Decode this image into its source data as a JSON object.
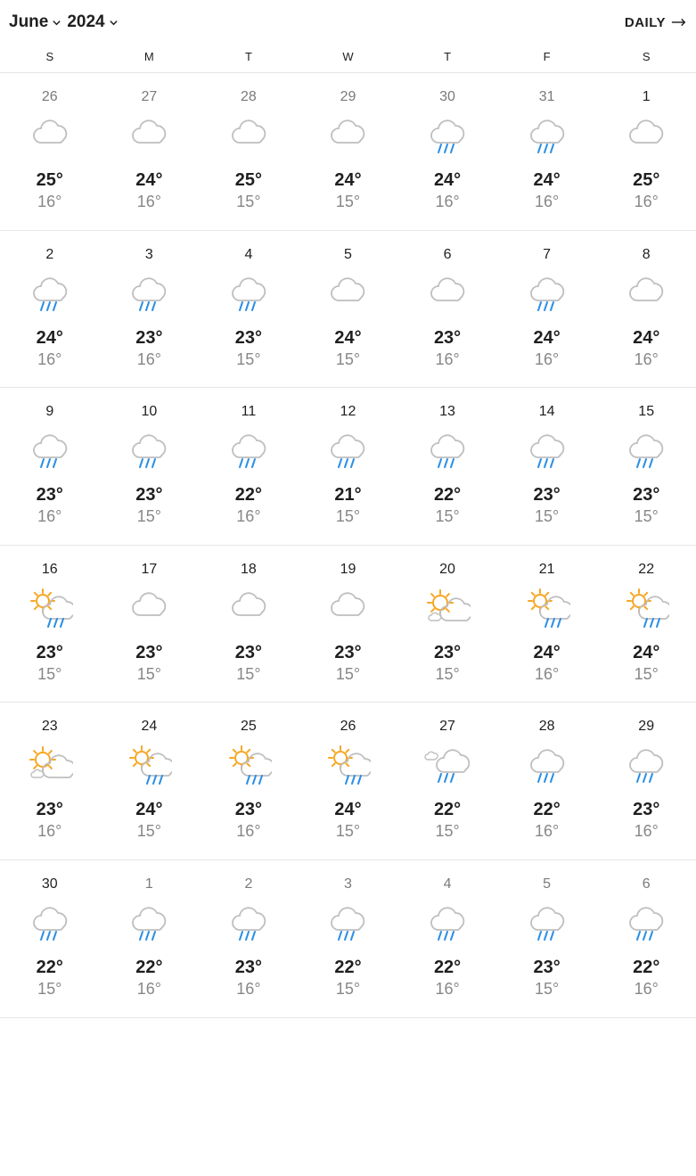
{
  "header": {
    "month": "June",
    "year": "2024",
    "daily_label": "DAILY"
  },
  "colors": {
    "text": "#1f1f1f",
    "muted": "#878787",
    "other_month": "#7a7a7a",
    "divider": "#e6e6e6",
    "cloud_stroke": "#bfbfbf",
    "rain": "#2a8fe6",
    "sun": "#f6a724",
    "background": "#ffffff"
  },
  "dow": [
    "S",
    "M",
    "T",
    "W",
    "T",
    "F",
    "S"
  ],
  "icon_types": [
    "cloudy",
    "rain",
    "partly-cloudy",
    "partly-rain",
    "sun-rain"
  ],
  "weeks": [
    [
      {
        "d": "26",
        "hi": "25°",
        "lo": "16°",
        "icon": "cloudy",
        "other": true
      },
      {
        "d": "27",
        "hi": "24°",
        "lo": "16°",
        "icon": "cloudy",
        "other": true
      },
      {
        "d": "28",
        "hi": "25°",
        "lo": "15°",
        "icon": "cloudy",
        "other": true
      },
      {
        "d": "29",
        "hi": "24°",
        "lo": "15°",
        "icon": "cloudy",
        "other": true
      },
      {
        "d": "30",
        "hi": "24°",
        "lo": "16°",
        "icon": "rain",
        "other": true
      },
      {
        "d": "31",
        "hi": "24°",
        "lo": "16°",
        "icon": "rain",
        "other": true
      },
      {
        "d": "1",
        "hi": "25°",
        "lo": "16°",
        "icon": "cloudy",
        "other": false
      }
    ],
    [
      {
        "d": "2",
        "hi": "24°",
        "lo": "16°",
        "icon": "rain",
        "other": false
      },
      {
        "d": "3",
        "hi": "23°",
        "lo": "16°",
        "icon": "rain",
        "other": false
      },
      {
        "d": "4",
        "hi": "23°",
        "lo": "15°",
        "icon": "rain",
        "other": false
      },
      {
        "d": "5",
        "hi": "24°",
        "lo": "15°",
        "icon": "cloudy",
        "other": false
      },
      {
        "d": "6",
        "hi": "23°",
        "lo": "16°",
        "icon": "cloudy",
        "other": false
      },
      {
        "d": "7",
        "hi": "24°",
        "lo": "16°",
        "icon": "rain",
        "other": false
      },
      {
        "d": "8",
        "hi": "24°",
        "lo": "16°",
        "icon": "cloudy",
        "other": false
      }
    ],
    [
      {
        "d": "9",
        "hi": "23°",
        "lo": "16°",
        "icon": "rain",
        "other": false
      },
      {
        "d": "10",
        "hi": "23°",
        "lo": "15°",
        "icon": "rain",
        "other": false
      },
      {
        "d": "11",
        "hi": "22°",
        "lo": "16°",
        "icon": "rain",
        "other": false
      },
      {
        "d": "12",
        "hi": "21°",
        "lo": "15°",
        "icon": "rain",
        "other": false
      },
      {
        "d": "13",
        "hi": "22°",
        "lo": "15°",
        "icon": "rain",
        "other": false
      },
      {
        "d": "14",
        "hi": "23°",
        "lo": "15°",
        "icon": "rain",
        "other": false
      },
      {
        "d": "15",
        "hi": "23°",
        "lo": "15°",
        "icon": "rain",
        "other": false
      }
    ],
    [
      {
        "d": "16",
        "hi": "23°",
        "lo": "15°",
        "icon": "sun-rain",
        "other": false
      },
      {
        "d": "17",
        "hi": "23°",
        "lo": "15°",
        "icon": "cloudy",
        "other": false
      },
      {
        "d": "18",
        "hi": "23°",
        "lo": "15°",
        "icon": "cloudy",
        "other": false
      },
      {
        "d": "19",
        "hi": "23°",
        "lo": "15°",
        "icon": "cloudy",
        "other": false
      },
      {
        "d": "20",
        "hi": "23°",
        "lo": "15°",
        "icon": "partly-cloudy",
        "other": false
      },
      {
        "d": "21",
        "hi": "24°",
        "lo": "16°",
        "icon": "sun-rain",
        "other": false
      },
      {
        "d": "22",
        "hi": "24°",
        "lo": "15°",
        "icon": "sun-rain",
        "other": false
      }
    ],
    [
      {
        "d": "23",
        "hi": "23°",
        "lo": "16°",
        "icon": "partly-cloudy",
        "other": false
      },
      {
        "d": "24",
        "hi": "24°",
        "lo": "15°",
        "icon": "sun-rain",
        "other": false
      },
      {
        "d": "25",
        "hi": "23°",
        "lo": "16°",
        "icon": "sun-rain",
        "other": false
      },
      {
        "d": "26",
        "hi": "24°",
        "lo": "15°",
        "icon": "sun-rain",
        "other": false
      },
      {
        "d": "27",
        "hi": "22°",
        "lo": "15°",
        "icon": "partly-rain",
        "other": false
      },
      {
        "d": "28",
        "hi": "22°",
        "lo": "16°",
        "icon": "rain",
        "other": false
      },
      {
        "d": "29",
        "hi": "23°",
        "lo": "16°",
        "icon": "rain",
        "other": false
      }
    ],
    [
      {
        "d": "30",
        "hi": "22°",
        "lo": "15°",
        "icon": "rain",
        "other": false
      },
      {
        "d": "1",
        "hi": "22°",
        "lo": "16°",
        "icon": "rain",
        "other": true
      },
      {
        "d": "2",
        "hi": "23°",
        "lo": "16°",
        "icon": "rain",
        "other": true
      },
      {
        "d": "3",
        "hi": "22°",
        "lo": "15°",
        "icon": "rain",
        "other": true
      },
      {
        "d": "4",
        "hi": "22°",
        "lo": "16°",
        "icon": "rain",
        "other": true
      },
      {
        "d": "5",
        "hi": "23°",
        "lo": "15°",
        "icon": "rain",
        "other": true
      },
      {
        "d": "6",
        "hi": "22°",
        "lo": "16°",
        "icon": "rain",
        "other": true
      }
    ]
  ]
}
